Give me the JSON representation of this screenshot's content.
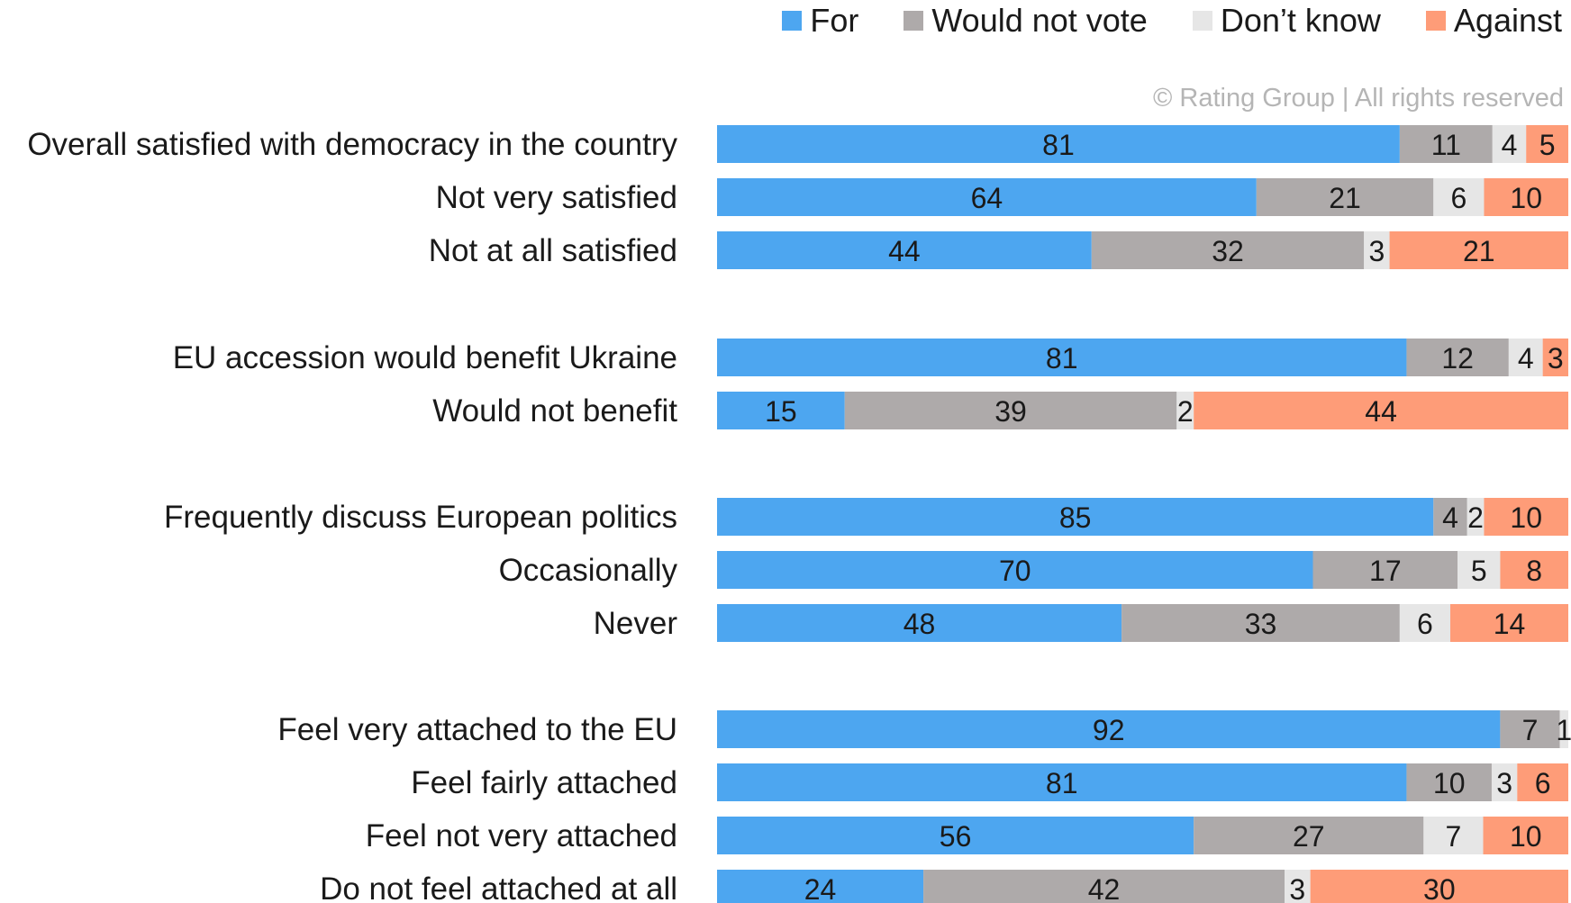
{
  "copyright": "© Rating Group | All rights reserved",
  "chart_data": {
    "type": "bar",
    "orientation": "horizontal",
    "stacked": true,
    "normalized": true,
    "legend_position": "top-right",
    "grid": false,
    "series": [
      {
        "name": "For",
        "color": "#4da6f0",
        "values": [
          81,
          64,
          44,
          81,
          15,
          85,
          70,
          48,
          92,
          81,
          56,
          24
        ]
      },
      {
        "name": "Would not vote",
        "color": "#aeaaaa",
        "values": [
          11,
          21,
          32,
          12,
          39,
          4,
          17,
          33,
          7,
          10,
          27,
          42
        ]
      },
      {
        "name": "Don’t know",
        "color": "#e6e6e6",
        "values": [
          4,
          6,
          3,
          4,
          2,
          2,
          5,
          6,
          1,
          3,
          7,
          3
        ]
      },
      {
        "name": "Against",
        "color": "#fe9c78",
        "values": [
          5,
          10,
          21,
          3,
          44,
          10,
          8,
          14,
          null,
          6,
          10,
          30
        ]
      }
    ],
    "categories": [
      "Overall satisfied with democracy in the country",
      "Not very satisfied",
      "Not at all satisfied",
      "EU accession would benefit Ukraine",
      "Would not benefit",
      "Frequently discuss European politics",
      "Occasionally",
      "Never",
      "Feel very attached to the EU",
      "Feel fairly attached",
      "Feel not very attached",
      "Do not feel attached at all"
    ],
    "groups": [
      [
        0,
        1,
        2
      ],
      [
        3,
        4
      ],
      [
        5,
        6,
        7
      ],
      [
        8,
        9,
        10,
        11
      ]
    ]
  }
}
